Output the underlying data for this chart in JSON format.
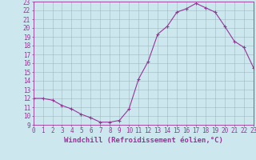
{
  "x": [
    0,
    1,
    2,
    3,
    4,
    5,
    6,
    7,
    8,
    9,
    10,
    11,
    12,
    13,
    14,
    15,
    16,
    17,
    18,
    19,
    20,
    21,
    22,
    23
  ],
  "y": [
    12,
    12,
    11.8,
    11.2,
    10.8,
    10.2,
    9.8,
    9.3,
    9.3,
    9.5,
    10.8,
    14.2,
    16.2,
    19.3,
    20.2,
    21.8,
    22.2,
    22.8,
    22.3,
    21.8,
    20.2,
    18.5,
    17.8,
    15.5
  ],
  "line_color": "#993399",
  "marker": "+",
  "xlabel": "Windchill (Refroidissement éolien,°C)",
  "xlim": [
    0,
    23
  ],
  "ylim": [
    9,
    23
  ],
  "yticks": [
    9,
    10,
    11,
    12,
    13,
    14,
    15,
    16,
    17,
    18,
    19,
    20,
    21,
    22,
    23
  ],
  "xticks": [
    0,
    1,
    2,
    3,
    4,
    5,
    6,
    7,
    8,
    9,
    10,
    11,
    12,
    13,
    14,
    15,
    16,
    17,
    18,
    19,
    20,
    21,
    22,
    23
  ],
  "bg_color": "#cce8ee",
  "grid_color": "#a0b8c0",
  "axis_color": "#993399",
  "tick_label_color": "#993399",
  "xlabel_color": "#993399",
  "xlabel_fontsize": 6.5,
  "tick_fontsize": 5.5,
  "linewidth": 0.8,
  "markersize": 3
}
